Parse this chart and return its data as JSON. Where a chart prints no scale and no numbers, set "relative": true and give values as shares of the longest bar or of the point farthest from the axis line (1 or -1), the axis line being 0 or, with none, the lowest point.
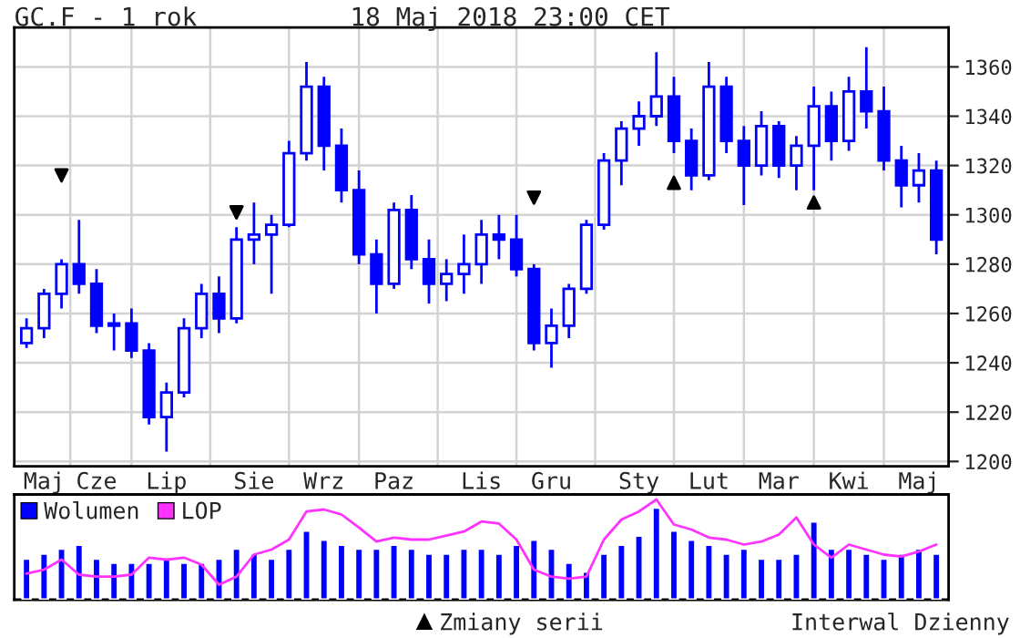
{
  "chart_data": [
    {
      "type": "candlestick",
      "title": "GC.F - 1 rok",
      "subtitle": "18 Maj 2018 23:00 CET",
      "color": "#0000ff",
      "categories": [
        null,
        "Maj",
        null,
        null,
        "Cze",
        null,
        null,
        null,
        "Lip",
        null,
        null,
        null,
        null,
        "Sie",
        null,
        null,
        null,
        "Wrz",
        null,
        null,
        null,
        "Paz",
        null,
        null,
        null,
        null,
        "Lis",
        null,
        null,
        null,
        "Gru",
        null,
        null,
        null,
        null,
        "Sty",
        null,
        null,
        null,
        "Lut",
        null,
        null,
        null,
        "Mar",
        null,
        null,
        null,
        "Kwi",
        null,
        null,
        null,
        "Maj",
        null
      ],
      "ohlc": [
        [
          1248,
          1258,
          1246,
          1254
        ],
        [
          1254,
          1270,
          1250,
          1268
        ],
        [
          1268,
          1282,
          1262,
          1280
        ],
        [
          1280,
          1298,
          1268,
          1272
        ],
        [
          1272,
          1278,
          1252,
          1255
        ],
        [
          1255,
          1260,
          1245,
          1256
        ],
        [
          1256,
          1262,
          1242,
          1245
        ],
        [
          1245,
          1248,
          1215,
          1218
        ],
        [
          1218,
          1232,
          1204,
          1228
        ],
        [
          1228,
          1258,
          1226,
          1254
        ],
        [
          1254,
          1272,
          1250,
          1268
        ],
        [
          1268,
          1275,
          1252,
          1258
        ],
        [
          1258,
          1295,
          1256,
          1290
        ],
        [
          1290,
          1305,
          1280,
          1292
        ],
        [
          1292,
          1300,
          1268,
          1296
        ],
        [
          1296,
          1330,
          1295,
          1325
        ],
        [
          1325,
          1362,
          1322,
          1352
        ],
        [
          1352,
          1356,
          1318,
          1328
        ],
        [
          1328,
          1335,
          1305,
          1310
        ],
        [
          1310,
          1318,
          1280,
          1284
        ],
        [
          1284,
          1290,
          1260,
          1272
        ],
        [
          1272,
          1305,
          1270,
          1302
        ],
        [
          1302,
          1308,
          1278,
          1282
        ],
        [
          1282,
          1290,
          1264,
          1272
        ],
        [
          1272,
          1282,
          1265,
          1276
        ],
        [
          1276,
          1292,
          1268,
          1280
        ],
        [
          1280,
          1298,
          1272,
          1292
        ],
        [
          1292,
          1300,
          1282,
          1290
        ],
        [
          1290,
          1300,
          1275,
          1278
        ],
        [
          1278,
          1280,
          1245,
          1248
        ],
        [
          1248,
          1262,
          1238,
          1255
        ],
        [
          1255,
          1272,
          1250,
          1270
        ],
        [
          1270,
          1298,
          1268,
          1296
        ],
        [
          1296,
          1325,
          1294,
          1322
        ],
        [
          1322,
          1338,
          1312,
          1335
        ],
        [
          1335,
          1346,
          1328,
          1340
        ],
        [
          1340,
          1366,
          1336,
          1348
        ],
        [
          1348,
          1356,
          1325,
          1330
        ],
        [
          1330,
          1335,
          1310,
          1316
        ],
        [
          1316,
          1362,
          1314,
          1352
        ],
        [
          1352,
          1356,
          1325,
          1330
        ],
        [
          1330,
          1336,
          1304,
          1320
        ],
        [
          1320,
          1342,
          1316,
          1336
        ],
        [
          1336,
          1338,
          1315,
          1320
        ],
        [
          1320,
          1332,
          1310,
          1328
        ],
        [
          1328,
          1352,
          1310,
          1344
        ],
        [
          1344,
          1350,
          1322,
          1330
        ],
        [
          1330,
          1356,
          1326,
          1350
        ],
        [
          1350,
          1368,
          1335,
          1342
        ],
        [
          1342,
          1352,
          1318,
          1322
        ],
        [
          1322,
          1328,
          1303,
          1312
        ],
        [
          1312,
          1325,
          1305,
          1318
        ],
        [
          1318,
          1322,
          1284,
          1290
        ]
      ],
      "series": [
        {
          "name": "Zmiany serii",
          "type": "scatter",
          "marker": "triangle",
          "color": "#000000",
          "values": [
            null,
            null,
            null,
            null,
            null,
            null,
            null,
            null,
            null,
            null,
            null,
            null,
            null,
            null,
            null,
            null,
            null,
            null,
            null,
            null,
            null,
            null,
            null,
            null,
            null,
            null,
            null,
            null,
            null,
            null,
            null,
            null,
            null,
            null,
            null,
            null,
            null,
            1313,
            null,
            null,
            null,
            null,
            null,
            null,
            null,
            1305,
            null,
            null,
            null,
            null,
            null,
            null,
            null
          ]
        },
        {
          "type": "scatter",
          "marker": "triangle_down",
          "color": "#000000",
          "values": [
            null,
            null,
            1316,
            null,
            null,
            null,
            null,
            null,
            null,
            null,
            null,
            null,
            1301,
            null,
            null,
            null,
            null,
            null,
            null,
            null,
            null,
            null,
            null,
            null,
            null,
            null,
            null,
            null,
            null,
            1307,
            null,
            null,
            null,
            null,
            null,
            null,
            null,
            null,
            null,
            null,
            null,
            null,
            null,
            null,
            null,
            null,
            null,
            null,
            null,
            null,
            null,
            null,
            null
          ]
        }
      ],
      "legend": "bottom",
      "ylim": [
        1198,
        1376
      ],
      "yticks": [
        1200,
        1220,
        1240,
        1260,
        1280,
        1300,
        1320,
        1340,
        1360
      ],
      "grid": true,
      "annotations": [
        "Interwal Dzienny"
      ]
    },
    {
      "type": "bar",
      "relative": true,
      "legend": "top left",
      "categories": [
        null,
        null,
        null,
        null,
        null,
        null,
        null,
        null,
        null,
        null,
        null,
        null,
        null,
        null,
        null,
        null,
        null,
        null,
        null,
        null,
        null,
        null,
        null,
        null,
        null,
        null,
        null,
        null,
        null,
        null,
        null,
        null,
        null,
        null,
        null,
        null,
        null,
        null,
        null,
        null,
        null,
        null,
        null,
        null,
        null,
        null,
        null,
        null,
        null,
        null,
        null,
        null,
        null
      ],
      "series": [
        {
          "name": "Wolumen",
          "type": "bar",
          "color": "#0000ff",
          "values": [
            0.41,
            0.46,
            0.51,
            0.55,
            0.41,
            0.37,
            0.37,
            0.37,
            0.41,
            0.37,
            0.37,
            0.41,
            0.51,
            0.46,
            0.41,
            0.51,
            0.69,
            0.6,
            0.55,
            0.51,
            0.51,
            0.55,
            0.51,
            0.46,
            0.46,
            0.51,
            0.51,
            0.46,
            0.55,
            0.6,
            0.51,
            0.37,
            0.28,
            0.46,
            0.55,
            0.64,
            0.92,
            0.69,
            0.6,
            0.55,
            0.46,
            0.51,
            0.41,
            0.41,
            0.46,
            0.78,
            0.51,
            0.51,
            0.46,
            0.41,
            0.46,
            0.51,
            0.46
          ]
        },
        {
          "name": "LOP",
          "type": "line",
          "color": "#ff33ff",
          "values": [
            0.26,
            0.3,
            0.4,
            0.25,
            0.23,
            0.23,
            0.25,
            0.42,
            0.4,
            0.42,
            0.35,
            0.15,
            0.23,
            0.45,
            0.5,
            0.6,
            0.88,
            0.9,
            0.85,
            0.72,
            0.58,
            0.62,
            0.6,
            0.6,
            0.64,
            0.68,
            0.78,
            0.76,
            0.6,
            0.3,
            0.23,
            0.21,
            0.23,
            0.6,
            0.8,
            0.88,
            1.0,
            0.75,
            0.7,
            0.62,
            0.6,
            0.55,
            0.58,
            0.65,
            0.82,
            0.55,
            0.42,
            0.55,
            0.5,
            0.45,
            0.43,
            0.48,
            0.55
          ]
        }
      ]
    }
  ]
}
